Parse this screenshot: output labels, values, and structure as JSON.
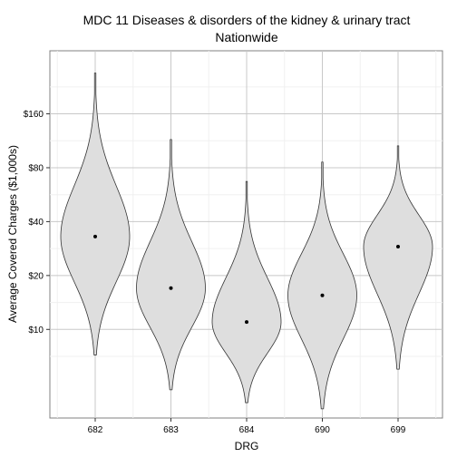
{
  "chart_data": {
    "type": "violin",
    "title": "MDC 11 Diseases & disorders of the kidney & urinary tract",
    "subtitle": "Nationwide",
    "xlabel": "DRG",
    "ylabel": "Average Covered Charges ($1,000s)",
    "y_scale": "log2",
    "ylim": [
      3.2,
      360
    ],
    "y_ticks": [
      10,
      20,
      40,
      80,
      160
    ],
    "y_tick_labels": [
      "$10",
      "$20",
      "$40",
      "$80",
      "$160"
    ],
    "categories": [
      "682",
      "683",
      "684",
      "690",
      "699"
    ],
    "medians": [
      33,
      17,
      11,
      15.5,
      29
    ],
    "ranges": [
      [
        7.2,
        270
      ],
      [
        4.6,
        115
      ],
      [
        3.9,
        67
      ],
      [
        3.6,
        86
      ],
      [
        6.0,
        106
      ]
    ],
    "grid": true,
    "colors": {
      "violin_fill": "#dedede",
      "violin_stroke": "#333333",
      "grid": "#c8c8c8",
      "grid_minor": "#f0f0f0",
      "panel_border": "#808080",
      "point": "#000000"
    }
  }
}
